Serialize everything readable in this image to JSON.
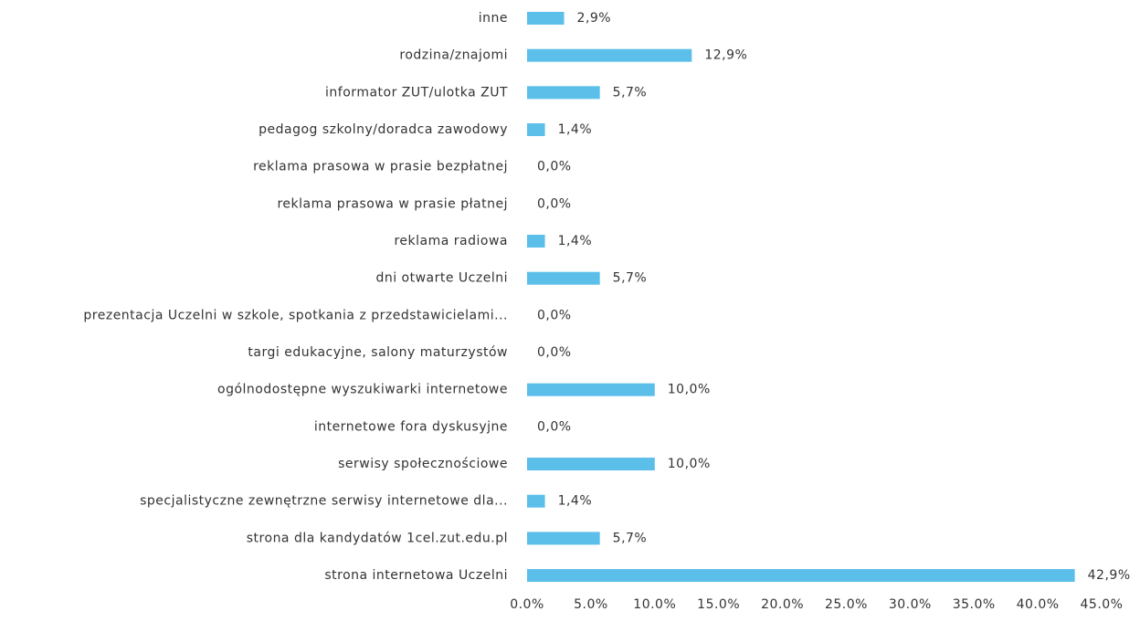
{
  "chart_data": {
    "type": "hbar",
    "categories": [
      "inne",
      "rodzina/znajomi",
      "informator ZUT/ulotka ZUT",
      "pedagog szkolny/doradca zawodowy",
      "reklama prasowa w prasie bezpłatnej",
      "reklama prasowa w prasie płatnej",
      "reklama radiowa",
      "dni otwarte Uczelni",
      "prezentacja Uczelni w szkole, spotkania z przedstawicielami...",
      "targi edukacyjne, salony maturzystów",
      "ogólnodostępne wyszukiwarki internetowe",
      "internetowe fora dyskusyjne",
      "serwisy społecznościowe",
      "specjalistyczne zewnętrzne serwisy internetowe dla...",
      "strona dla kandydatów 1cel.zut.edu.pl",
      "strona internetowa Uczelni"
    ],
    "values": [
      2.9,
      12.9,
      5.7,
      1.4,
      0,
      0,
      1.4,
      5.7,
      0,
      0,
      10,
      0,
      10,
      1.4,
      5.7,
      42.9
    ],
    "value_labels": [
      "2,9%",
      "12,9%",
      "5,7%",
      "1,4%",
      "0,0%",
      "0,0%",
      "1,4%",
      "5,7%",
      "0,0%",
      "0,0%",
      "10,0%",
      "0,0%",
      "10,0%",
      "1,4%",
      "5,7%",
      "42,9%"
    ],
    "color": "#5bbfea",
    "xlim": [
      0,
      45
    ],
    "xticks": [
      {
        "value": 0,
        "label": "0.0%"
      },
      {
        "value": 5,
        "label": "5.0%"
      },
      {
        "value": 10,
        "label": "10.0%"
      },
      {
        "value": 15,
        "label": "15.0%"
      },
      {
        "value": 20,
        "label": "20.0%"
      },
      {
        "value": 25,
        "label": "25.0%"
      },
      {
        "value": 30,
        "label": "30.0%"
      },
      {
        "value": 35,
        "label": "35.0%"
      },
      {
        "value": 40,
        "label": "40.0%"
      },
      {
        "value": 45,
        "label": "45.0%"
      }
    ],
    "grid": false
  }
}
